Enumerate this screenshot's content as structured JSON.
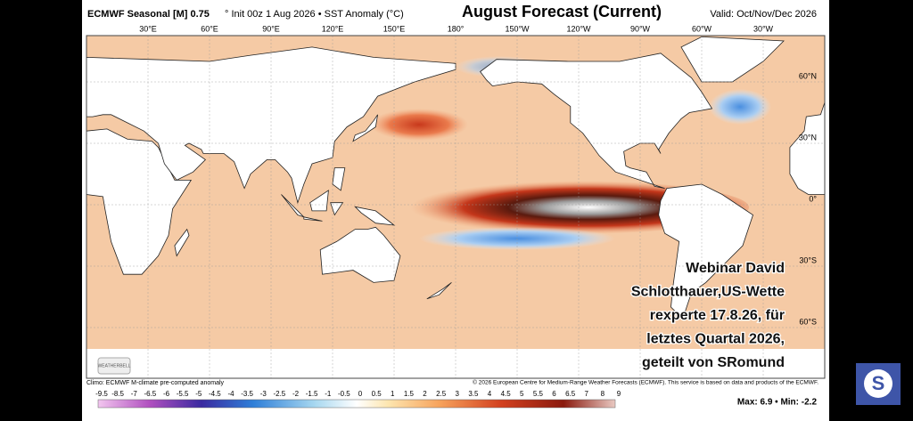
{
  "header": {
    "product": "ECMWF Seasonal [M] 0.75",
    "details": "° Init 00z 1 Aug 2026 • SST Anomaly (°C)",
    "title": "August Forecast (Current)",
    "valid": "Valid: Oct/Nov/Dec 2026"
  },
  "map": {
    "lon_labels": [
      "30°E",
      "60°E",
      "90°E",
      "120°E",
      "150°E",
      "180°",
      "150°W",
      "120°W",
      "90°W",
      "60°W",
      "30°W"
    ],
    "lat_labels": [
      "60°N",
      "30°N",
      "0°",
      "30°S",
      "60°S"
    ],
    "logo": "WEATHERBELL",
    "overlay": [
      "Webinar David",
      "Schlotthauer,US-Wette",
      "rexperte 17.8.26, für",
      "letztes Quartal 2026,",
      "geteilt von SRomund"
    ]
  },
  "footer": {
    "climo": "Climo: ECMWF M-climate pre-computed anomaly",
    "copyright": "© 2026 European Centre for Medium-Range Weather Forecasts (ECMWF). This service is based on data and products of the ECMWF.",
    "colorbar_labels": [
      -9.5,
      -8.5,
      -7,
      -6.5,
      -6,
      -5.5,
      -5,
      -4.5,
      -4,
      -3.5,
      -3,
      -2.5,
      -2,
      -1.5,
      -1,
      -0.5,
      0,
      0.5,
      1,
      1.5,
      2,
      2.5,
      3,
      3.5,
      4,
      4.5,
      5,
      5.5,
      6,
      6.5,
      7,
      8,
      9
    ],
    "maxmin": "Max: 6.9 • Min: -2.2"
  },
  "badge": "S"
}
